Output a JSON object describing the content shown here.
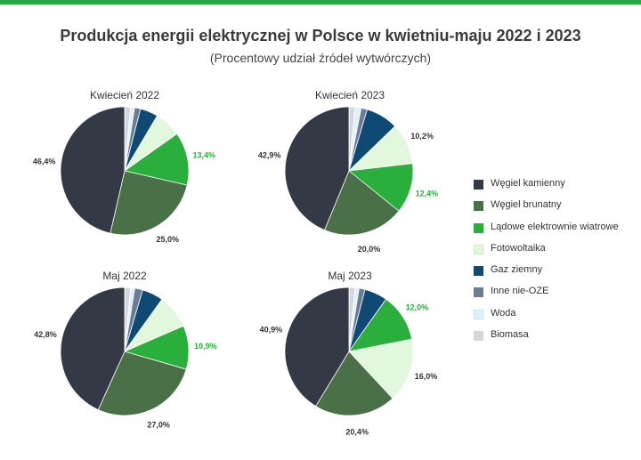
{
  "header": {
    "title": "Produkcja energii elektrycznej w Polsce w kwietniu-maju 2022 i 2023",
    "subtitle": "(Procentowy udział źródeł wytwórczych)"
  },
  "colors": {
    "Węgiel kamienny": "#333a45",
    "Węgiel brunatny": "#4a7048",
    "Lądowe elektrownie wiatrowe": "#2aae3c",
    "Fotowoltaika": "#e2f8dc",
    "Gaz ziemny": "#0e4a74",
    "Inne nie-OZE": "#6a7d96",
    "Woda": "#dff1fb",
    "Biomasa": "#d4d8dc",
    "label_dark": "#333333",
    "label_green": "#2aae3c",
    "top_bar": "#27a844"
  },
  "legend": [
    "Węgiel kamienny",
    "Węgiel brunatny",
    "Lądowe elektrownie wiatrowe",
    "Fotowoltaika",
    "Gaz ziemny",
    "Inne nie-OZE",
    "Woda",
    "Biomasa"
  ],
  "chart_data": [
    {
      "type": "pie",
      "title": "Kwiecień 2022",
      "slices": [
        {
          "name": "Biomasa",
          "value": 1.5
        },
        {
          "name": "Woda",
          "value": 1.0
        },
        {
          "name": "Inne nie-OZE",
          "value": 1.5
        },
        {
          "name": "Gaz ziemny",
          "value": 4.5
        },
        {
          "name": "Fotowoltaika",
          "value": 6.7
        },
        {
          "name": "Lądowe elektrownie wiatrowe",
          "value": 13.4,
          "label": "13,4%"
        },
        {
          "name": "Węgiel brunatny",
          "value": 25.0,
          "label": "25,0%"
        },
        {
          "name": "Węgiel kamienny",
          "value": 46.4,
          "label": "46,4%"
        }
      ]
    },
    {
      "type": "pie",
      "title": "Kwiecień 2023",
      "slices": [
        {
          "name": "Biomasa",
          "value": 1.5
        },
        {
          "name": "Woda",
          "value": 1.5
        },
        {
          "name": "Inne nie-OZE",
          "value": 1.5
        },
        {
          "name": "Gaz ziemny",
          "value": 8.0
        },
        {
          "name": "Fotowoltaika",
          "value": 10.2,
          "label": "10,2%"
        },
        {
          "name": "Lądowe elektrownie wiatrowe",
          "value": 12.4,
          "label": "12,4%"
        },
        {
          "name": "Węgiel brunatny",
          "value": 20.0,
          "label": "20,0%"
        },
        {
          "name": "Węgiel kamienny",
          "value": 42.9,
          "label": "42,9%"
        }
      ]
    },
    {
      "type": "pie",
      "title": "Maj 2022",
      "slices": [
        {
          "name": "Biomasa",
          "value": 1.5
        },
        {
          "name": "Woda",
          "value": 1.0
        },
        {
          "name": "Inne nie-OZE",
          "value": 2.0
        },
        {
          "name": "Gaz ziemny",
          "value": 5.3
        },
        {
          "name": "Fotowoltaika",
          "value": 8.5
        },
        {
          "name": "Lądowe elektrownie wiatrowe",
          "value": 10.9,
          "label": "10,9%"
        },
        {
          "name": "Węgiel brunatny",
          "value": 27.0,
          "label": "27,0%"
        },
        {
          "name": "Węgiel kamienny",
          "value": 42.8,
          "label": "42,8%"
        }
      ]
    },
    {
      "type": "pie",
      "title": "Maj 2023",
      "slices": [
        {
          "name": "Biomasa",
          "value": 1.5
        },
        {
          "name": "Woda",
          "value": 1.0
        },
        {
          "name": "Inne nie-OZE",
          "value": 1.5
        },
        {
          "name": "Gaz ziemny",
          "value": 5.7
        },
        {
          "name": "Lądowe elektrownie wiatrowe",
          "value": 12.0,
          "label": "12,0%"
        },
        {
          "name": "Fotowoltaika",
          "value": 16.0,
          "label": "16,0%"
        },
        {
          "name": "Węgiel brunatny",
          "value": 20.4,
          "label": "20,4%"
        },
        {
          "name": "Węgiel kamienny",
          "value": 40.9,
          "label": "40,9%"
        }
      ]
    }
  ]
}
